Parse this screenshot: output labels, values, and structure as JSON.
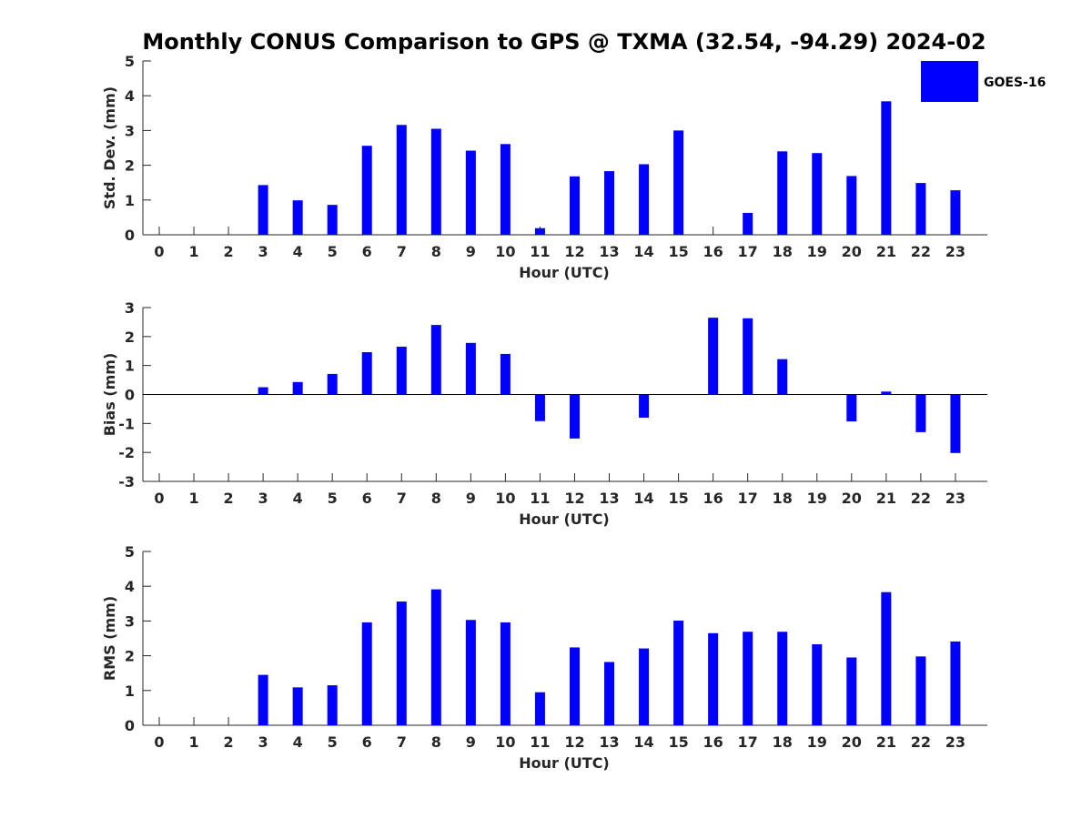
{
  "chart_title": "Monthly CONUS Comparison to GPS @ TXMA (32.54, -94.29) 2024-02",
  "legend": {
    "label": "GOES-16",
    "color": "#0000ff"
  },
  "bar_color": "#0000ff",
  "chart_data": [
    {
      "type": "bar",
      "xlabel": "Hour (UTC)",
      "ylabel": "Std. Dev. (mm)",
      "ylim": [
        0,
        5
      ],
      "yticks": [
        0,
        1,
        2,
        3,
        4,
        5
      ],
      "categories": [
        "0",
        "1",
        "2",
        "3",
        "4",
        "5",
        "6",
        "7",
        "8",
        "9",
        "10",
        "11",
        "12",
        "13",
        "14",
        "15",
        "16",
        "17",
        "18",
        "19",
        "20",
        "21",
        "22",
        "23"
      ],
      "series": [
        {
          "name": "GOES-16",
          "values": [
            null,
            null,
            null,
            1.43,
            0.99,
            0.86,
            2.56,
            3.16,
            3.05,
            2.42,
            2.61,
            0.19,
            1.68,
            1.83,
            2.03,
            3.0,
            null,
            0.63,
            2.4,
            2.35,
            1.69,
            3.84,
            1.49,
            1.28
          ]
        }
      ],
      "legend_position": "top-right"
    },
    {
      "type": "bar",
      "xlabel": "Hour (UTC)",
      "ylabel": "Bias (mm)",
      "ylim": [
        -3,
        3
      ],
      "yticks": [
        -3,
        -2,
        -1,
        0,
        1,
        2,
        3
      ],
      "categories": [
        "0",
        "1",
        "2",
        "3",
        "4",
        "5",
        "6",
        "7",
        "8",
        "9",
        "10",
        "11",
        "12",
        "13",
        "14",
        "15",
        "16",
        "17",
        "18",
        "19",
        "20",
        "21",
        "22",
        "23"
      ],
      "series": [
        {
          "name": "GOES-16",
          "values": [
            null,
            null,
            null,
            0.25,
            0.43,
            0.71,
            1.46,
            1.65,
            2.4,
            1.78,
            1.4,
            -0.92,
            -1.52,
            0,
            -0.8,
            0,
            2.65,
            2.63,
            1.22,
            0,
            -0.93,
            0.1,
            -1.3,
            -2.02
          ]
        }
      ]
    },
    {
      "type": "bar",
      "xlabel": "Hour (UTC)",
      "ylabel": "RMS (mm)",
      "ylim": [
        0,
        5
      ],
      "yticks": [
        0,
        1,
        2,
        3,
        4,
        5
      ],
      "categories": [
        "0",
        "1",
        "2",
        "3",
        "4",
        "5",
        "6",
        "7",
        "8",
        "9",
        "10",
        "11",
        "12",
        "13",
        "14",
        "15",
        "16",
        "17",
        "18",
        "19",
        "20",
        "21",
        "22",
        "23"
      ],
      "series": [
        {
          "name": "GOES-16",
          "values": [
            null,
            null,
            null,
            1.45,
            1.09,
            1.15,
            2.96,
            3.56,
            3.91,
            3.03,
            2.96,
            0.95,
            2.24,
            1.82,
            2.21,
            3.01,
            2.65,
            2.69,
            2.69,
            2.33,
            1.95,
            3.83,
            1.98,
            2.41
          ]
        }
      ]
    }
  ]
}
